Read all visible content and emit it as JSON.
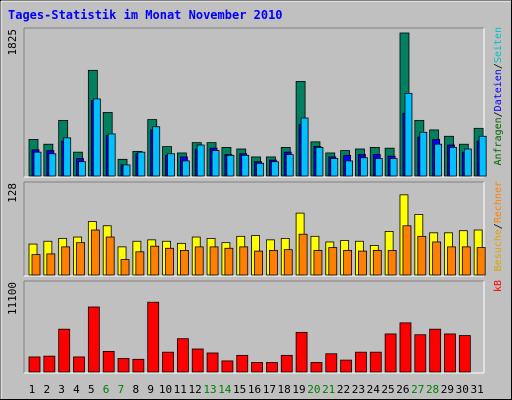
{
  "chart_data": {
    "type": "bar",
    "title": "Tages-Statistik im Monat November 2010",
    "categories": [
      "1",
      "2",
      "3",
      "4",
      "5",
      "6",
      "7",
      "8",
      "9",
      "10",
      "11",
      "12",
      "13",
      "14",
      "15",
      "16",
      "17",
      "18",
      "19",
      "20",
      "21",
      "22",
      "23",
      "24",
      "25",
      "26",
      "27",
      "28",
      "29",
      "30",
      "31"
    ],
    "weekend_days": [
      "6",
      "7",
      "13",
      "14",
      "20",
      "21",
      "27",
      "28"
    ],
    "panels": [
      {
        "id": "top",
        "ymax_label": "1825",
        "ymax": 1825,
        "legend": [
          {
            "text": "Anfragen",
            "color": "#006600"
          },
          {
            "text": "/",
            "color": "#000000"
          },
          {
            "text": "Dateien",
            "color": "#0000ff"
          },
          {
            "text": "/",
            "color": "#000000"
          },
          {
            "text": "Seiten",
            "color": "#00c0c0"
          }
        ],
        "series": [
          {
            "name": "Anfragen",
            "color": "#008060",
            "values": [
              460,
              400,
              700,
              300,
              1330,
              800,
              210,
              310,
              710,
              370,
              290,
              420,
              420,
              360,
              340,
              240,
              240,
              360,
              1190,
              430,
              290,
              320,
              340,
              360,
              350,
              1800,
              700,
              580,
              500,
              400,
              600
            ]
          },
          {
            "name": "Dateien",
            "color": "#0000ff",
            "values": [
              330,
              320,
              440,
              220,
              950,
              510,
              140,
              280,
              580,
              260,
              240,
              340,
              350,
              270,
              280,
              180,
              200,
              300,
              650,
              370,
              240,
              260,
              270,
              270,
              250,
              790,
              490,
              460,
              390,
              300,
              440
            ]
          },
          {
            "name": "Seiten",
            "color": "#00c0ff",
            "values": [
              300,
              280,
              480,
              180,
              970,
              530,
              140,
              300,
              620,
              280,
              190,
              390,
              320,
              260,
              260,
              160,
              180,
              270,
              730,
              360,
              220,
              190,
              230,
              220,
              220,
              1040,
              550,
              400,
              360,
              340,
              500
            ]
          }
        ]
      },
      {
        "id": "middle",
        "ymax_label": "128",
        "ymax": 128,
        "legend": [
          {
            "text": "Besuche",
            "color": "#e0a000"
          },
          {
            "text": "/",
            "color": "#000000"
          },
          {
            "text": "Rechner",
            "color": "#ff8000"
          }
        ],
        "series": [
          {
            "name": "Besuche",
            "color": "#ffff00",
            "values": [
              44,
              48,
              52,
              54,
              76,
              70,
              40,
              48,
              50,
              48,
              45,
              54,
              52,
              46,
              55,
              56,
              50,
              52,
              88,
              55,
              47,
              49,
              48,
              42,
              62,
              114,
              86,
              60,
              60,
              63,
              64
            ]
          },
          {
            "name": "Rechner",
            "color": "#ff8000",
            "values": [
              29,
              30,
              40,
              46,
              64,
              54,
              22,
              33,
              41,
              38,
              35,
              40,
              40,
              38,
              40,
              34,
              35,
              36,
              58,
              35,
              39,
              35,
              34,
              35,
              35,
              70,
              55,
              47,
              40,
              40,
              39
            ]
          }
        ]
      },
      {
        "id": "bottom",
        "ymax_label": "11100",
        "ymax": 11100,
        "legend": [
          {
            "text": "kB",
            "color": "#ff0000"
          }
        ],
        "series": [
          {
            "name": "kB",
            "color": "#ff0000",
            "values": [
              1900,
              2000,
              5400,
              1900,
              8200,
              2600,
              1700,
              1600,
              8800,
              2500,
              4200,
              2900,
              2400,
              1400,
              2100,
              1200,
              1200,
              2100,
              5000,
              1200,
              2300,
              1500,
              2500,
              2500,
              4800,
              6200,
              4700,
              5400,
              4800,
              4600,
              0
            ]
          }
        ]
      }
    ]
  }
}
